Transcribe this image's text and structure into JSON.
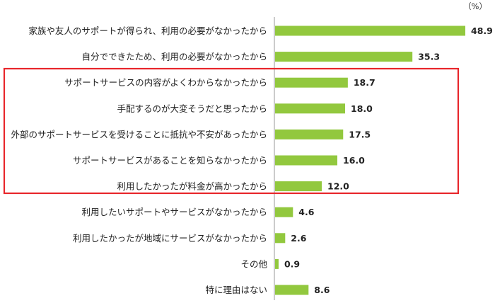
{
  "chart_data": {
    "type": "bar",
    "orientation": "horizontal",
    "unit_label": "（%）",
    "categories": [
      "家族や友人のサポートが得られ、利用の必要がなかったから",
      "自分でできたため、利用の必要がなかったから",
      "サポートサービスの内容がよくわからなかったから",
      "手配するのが大変そうだと思ったから",
      "外部のサポートサービスを受けることに抵抗や不安があったから",
      "サポートサービスがあることを知らなかったから",
      "利用したかったが料金が高かったから",
      "利用したいサポートやサービスがなかったから",
      "利用したかったが地域にサービスがなかったから",
      "その他",
      "特に理由はない"
    ],
    "values": [
      48.9,
      35.3,
      18.7,
      18.0,
      17.5,
      16.0,
      12.0,
      4.6,
      2.6,
      0.9,
      8.6
    ],
    "value_labels": [
      "48.9",
      "35.3",
      "18.7",
      "18.0",
      "17.5",
      "16.0",
      "12.0",
      "4.6",
      "2.6",
      "0.9",
      "8.6"
    ],
    "highlight": {
      "from_index": 2,
      "to_index": 6,
      "color": "#e8262b"
    },
    "bar_color": "#92c83e",
    "axis_color": "#9a9a9a"
  }
}
